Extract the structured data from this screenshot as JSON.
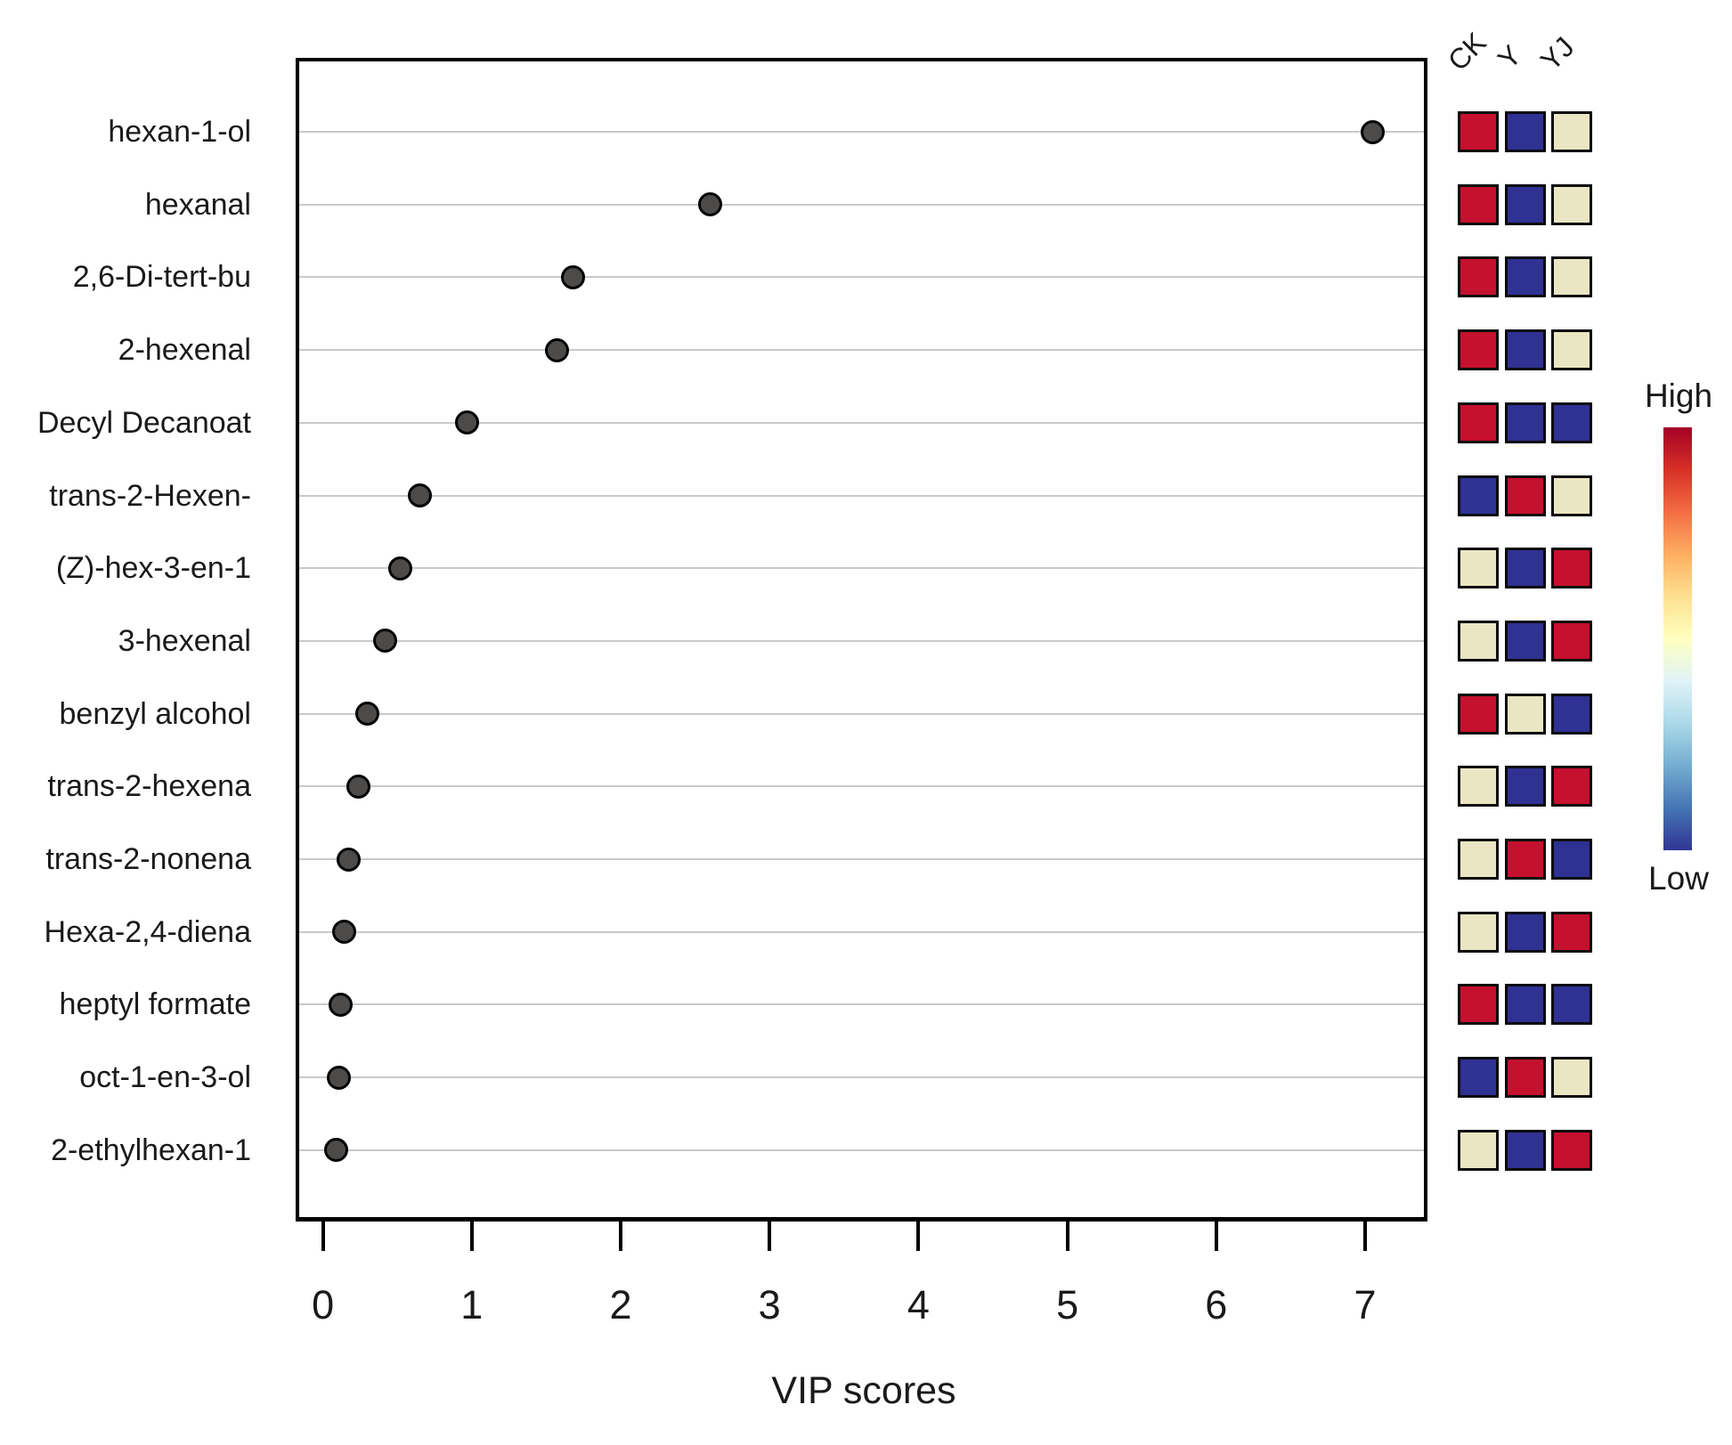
{
  "chart_data": {
    "type": "scatter",
    "title": "",
    "xlabel": "VIP scores",
    "x_axis": {
      "ticks": [
        0,
        1,
        2,
        3,
        4,
        5,
        6,
        7
      ],
      "range": [
        -0.16,
        7.42
      ]
    },
    "grid": true,
    "categories": [
      "hexan-1-ol",
      "hexanal",
      "2,6-Di-tert-bu",
      "2-hexenal",
      "Decyl Decanoat",
      "trans-2-Hexen-",
      "(Z)-hex-3-en-1",
      "3-hexenal",
      "benzyl alcohol",
      "trans-2-hexena",
      "trans-2-nonena",
      "Hexa-2,4-diena",
      "heptyl formate",
      "oct-1-en-3-ol",
      "2-ethylhexan-1"
    ],
    "values": [
      7.05,
      2.6,
      1.68,
      1.57,
      0.97,
      0.65,
      0.52,
      0.42,
      0.3,
      0.24,
      0.17,
      0.14,
      0.12,
      0.11,
      0.09
    ],
    "marker": {
      "fill": "#4d4b49",
      "stroke": "#000000"
    },
    "heatmap": {
      "columns": [
        "CK",
        "Y",
        "YJ"
      ],
      "cells": [
        [
          "high",
          "low",
          "mid"
        ],
        [
          "high",
          "low",
          "mid"
        ],
        [
          "high",
          "low",
          "mid"
        ],
        [
          "high",
          "low",
          "mid"
        ],
        [
          "high",
          "low",
          "low"
        ],
        [
          "low",
          "high",
          "mid"
        ],
        [
          "mid",
          "low",
          "high"
        ],
        [
          "mid",
          "low",
          "high"
        ],
        [
          "high",
          "mid",
          "low"
        ],
        [
          "mid",
          "low",
          "high"
        ],
        [
          "mid",
          "high",
          "low"
        ],
        [
          "mid",
          "low",
          "high"
        ],
        [
          "high",
          "low",
          "low"
        ],
        [
          "low",
          "high",
          "mid"
        ],
        [
          "mid",
          "low",
          "high"
        ]
      ],
      "level_colors": {
        "high": "#C5102E",
        "low": "#2F3193",
        "mid": "#EAE6C3"
      }
    },
    "legend": {
      "high_label": "High",
      "low_label": "Low",
      "gradient": [
        "#A50026",
        "#D73027",
        "#F46D43",
        "#FDAE61",
        "#FEE090",
        "#FFFFBF",
        "#E0F3F8",
        "#ABD9E9",
        "#74ADD1",
        "#4575B4",
        "#313695"
      ]
    }
  }
}
